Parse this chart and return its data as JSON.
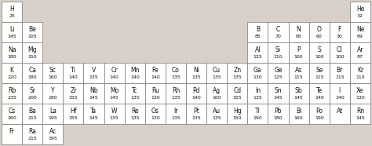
{
  "elements": [
    {
      "symbol": "H",
      "value": "25",
      "row": 0,
      "col": 0
    },
    {
      "symbol": "He",
      "value": "32",
      "row": 0,
      "col": 17
    },
    {
      "symbol": "Li",
      "value": "145",
      "row": 1,
      "col": 0
    },
    {
      "symbol": "Be",
      "value": "105",
      "row": 1,
      "col": 1
    },
    {
      "symbol": "B",
      "value": "85",
      "row": 1,
      "col": 12
    },
    {
      "symbol": "C",
      "value": "70",
      "row": 1,
      "col": 13
    },
    {
      "symbol": "N",
      "value": "65",
      "row": 1,
      "col": 14
    },
    {
      "symbol": "O",
      "value": "60",
      "row": 1,
      "col": 15
    },
    {
      "symbol": "F",
      "value": "30",
      "row": 1,
      "col": 16
    },
    {
      "symbol": "Ne",
      "value": "69",
      "row": 1,
      "col": 17
    },
    {
      "symbol": "Na",
      "value": "180",
      "row": 2,
      "col": 0
    },
    {
      "symbol": "Mg",
      "value": "150",
      "row": 2,
      "col": 1
    },
    {
      "symbol": "Al",
      "value": "125",
      "row": 2,
      "col": 12
    },
    {
      "symbol": "Si",
      "value": "110",
      "row": 2,
      "col": 13
    },
    {
      "symbol": "P",
      "value": "100",
      "row": 2,
      "col": 14
    },
    {
      "symbol": "S",
      "value": "100",
      "row": 2,
      "col": 15
    },
    {
      "symbol": "Cl",
      "value": "100",
      "row": 2,
      "col": 16
    },
    {
      "symbol": "Ar",
      "value": "97",
      "row": 2,
      "col": 17
    },
    {
      "symbol": "K",
      "value": "220",
      "row": 3,
      "col": 0
    },
    {
      "symbol": "Ca",
      "value": "180",
      "row": 3,
      "col": 1
    },
    {
      "symbol": "Sc",
      "value": "160",
      "row": 3,
      "col": 2
    },
    {
      "symbol": "Ti",
      "value": "140",
      "row": 3,
      "col": 3
    },
    {
      "symbol": "V",
      "value": "135",
      "row": 3,
      "col": 4
    },
    {
      "symbol": "Cr",
      "value": "140",
      "row": 3,
      "col": 5
    },
    {
      "symbol": "Mn",
      "value": "140",
      "row": 3,
      "col": 6
    },
    {
      "symbol": "Fe",
      "value": "140",
      "row": 3,
      "col": 7
    },
    {
      "symbol": "Co",
      "value": "135",
      "row": 3,
      "col": 8
    },
    {
      "symbol": "Ni",
      "value": "135",
      "row": 3,
      "col": 9
    },
    {
      "symbol": "Cu",
      "value": "135",
      "row": 3,
      "col": 10
    },
    {
      "symbol": "Zn",
      "value": "135",
      "row": 3,
      "col": 11
    },
    {
      "symbol": "Ga",
      "value": "130",
      "row": 3,
      "col": 12
    },
    {
      "symbol": "Ge",
      "value": "125",
      "row": 3,
      "col": 13
    },
    {
      "symbol": "As",
      "value": "115",
      "row": 3,
      "col": 14
    },
    {
      "symbol": "Se",
      "value": "115",
      "row": 3,
      "col": 15
    },
    {
      "symbol": "Br",
      "value": "115",
      "row": 3,
      "col": 16
    },
    {
      "symbol": "Kr",
      "value": "110",
      "row": 3,
      "col": 17
    },
    {
      "symbol": "Rb",
      "value": "235",
      "row": 4,
      "col": 0
    },
    {
      "symbol": "Sr",
      "value": "200",
      "row": 4,
      "col": 1
    },
    {
      "symbol": "Y",
      "value": "180",
      "row": 4,
      "col": 2
    },
    {
      "symbol": "Zr",
      "value": "155",
      "row": 4,
      "col": 3
    },
    {
      "symbol": "Nb",
      "value": "145",
      "row": 4,
      "col": 4
    },
    {
      "symbol": "Mo",
      "value": "145",
      "row": 4,
      "col": 5
    },
    {
      "symbol": "Tc",
      "value": "135",
      "row": 4,
      "col": 6
    },
    {
      "symbol": "Ru",
      "value": "130",
      "row": 4,
      "col": 7
    },
    {
      "symbol": "Rh",
      "value": "135",
      "row": 4,
      "col": 8
    },
    {
      "symbol": "Pd",
      "value": "140",
      "row": 4,
      "col": 9
    },
    {
      "symbol": "Ag",
      "value": "160",
      "row": 4,
      "col": 10
    },
    {
      "symbol": "Cd",
      "value": "155",
      "row": 4,
      "col": 11
    },
    {
      "symbol": "In",
      "value": "135",
      "row": 4,
      "col": 12
    },
    {
      "symbol": "Sn",
      "value": "145",
      "row": 4,
      "col": 13
    },
    {
      "symbol": "Sb",
      "value": "145",
      "row": 4,
      "col": 14
    },
    {
      "symbol": "Te",
      "value": "140",
      "row": 4,
      "col": 15
    },
    {
      "symbol": "I",
      "value": "140",
      "row": 4,
      "col": 16
    },
    {
      "symbol": "Xe",
      "value": "130",
      "row": 4,
      "col": 17
    },
    {
      "symbol": "Cs",
      "value": "260",
      "row": 5,
      "col": 0
    },
    {
      "symbol": "Ba",
      "value": "215",
      "row": 5,
      "col": 1
    },
    {
      "symbol": "La",
      "value": "195",
      "row": 5,
      "col": 2
    },
    {
      "symbol": "Hf",
      "value": "155",
      "row": 5,
      "col": 3
    },
    {
      "symbol": "Ta",
      "value": "145",
      "row": 5,
      "col": 4
    },
    {
      "symbol": "W",
      "value": "135",
      "row": 5,
      "col": 5
    },
    {
      "symbol": "Re",
      "value": "135",
      "row": 5,
      "col": 6
    },
    {
      "symbol": "Os",
      "value": "130",
      "row": 5,
      "col": 7
    },
    {
      "symbol": "Ir",
      "value": "135",
      "row": 5,
      "col": 8
    },
    {
      "symbol": "Pt",
      "value": "135",
      "row": 5,
      "col": 9
    },
    {
      "symbol": "Au",
      "value": "135",
      "row": 5,
      "col": 10
    },
    {
      "symbol": "Hg",
      "value": "150",
      "row": 5,
      "col": 11
    },
    {
      "symbol": "Tl",
      "value": "190",
      "row": 5,
      "col": 12
    },
    {
      "symbol": "Pb",
      "value": "180",
      "row": 5,
      "col": 13
    },
    {
      "symbol": "Bi",
      "value": "160",
      "row": 5,
      "col": 14
    },
    {
      "symbol": "Po",
      "value": "190",
      "row": 5,
      "col": 15
    },
    {
      "symbol": "At",
      "value": "",
      "row": 5,
      "col": 16
    },
    {
      "symbol": "Rn",
      "value": "145",
      "row": 5,
      "col": 17
    },
    {
      "symbol": "Fr",
      "value": "",
      "row": 6,
      "col": 0
    },
    {
      "symbol": "Ra",
      "value": "215",
      "row": 6,
      "col": 1
    },
    {
      "symbol": "Ac",
      "value": "195",
      "row": 6,
      "col": 2
    }
  ],
  "fig_bg_color": "#d8d0c8",
  "cell_bg": "#ffffff",
  "border_color": "#888888",
  "text_color": "#111111",
  "n_cols": 18,
  "n_rows": 7,
  "symbol_fontsize": 5.5,
  "value_fontsize": 4.5
}
